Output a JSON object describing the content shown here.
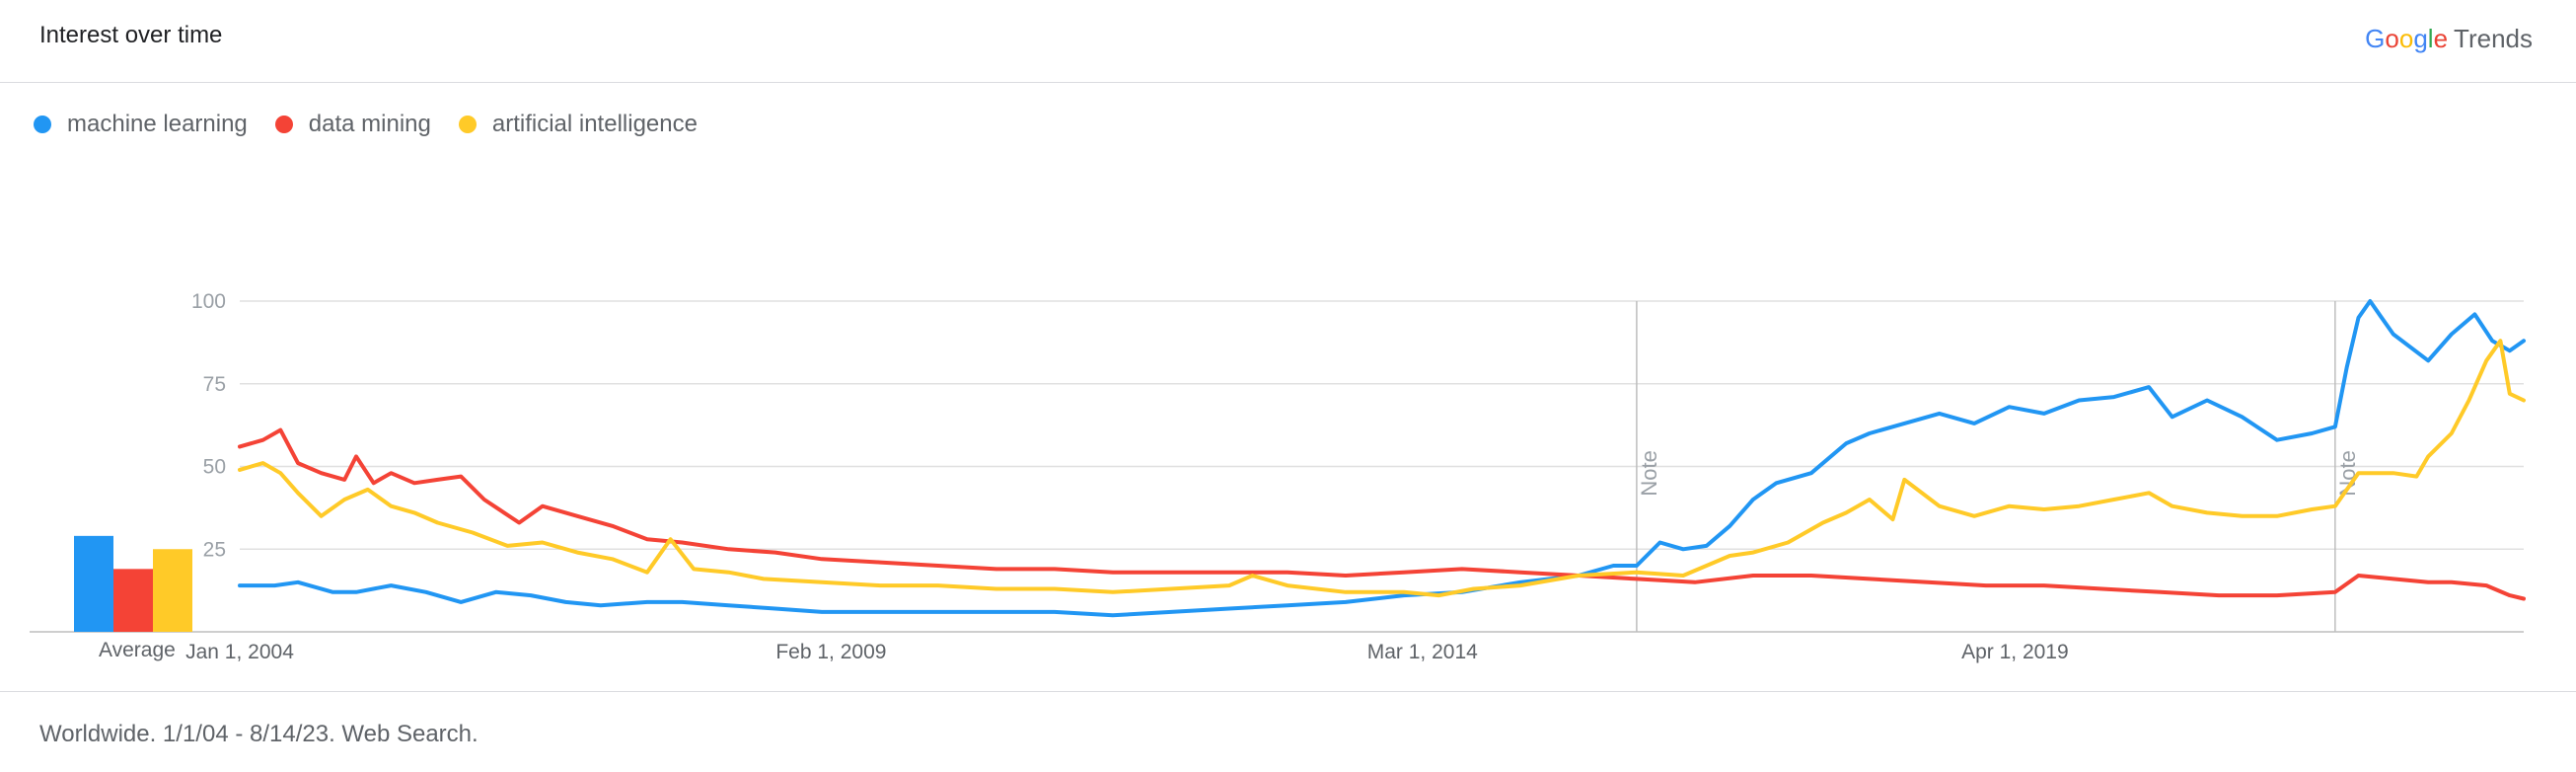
{
  "header": {
    "title": "Interest over time",
    "brand_letters": [
      "G",
      "o",
      "o",
      "g",
      "l",
      "e"
    ],
    "brand_suffix": "Trends"
  },
  "legend": [
    {
      "label": "machine learning",
      "color": "#2196F3"
    },
    {
      "label": "data mining",
      "color": "#F44336"
    },
    {
      "label": "artificial intelligence",
      "color": "#FFCA28"
    }
  ],
  "footer": {
    "text": "Worldwide. 1/1/04 - 8/14/23. Web Search."
  },
  "average_label": "Average",
  "chart_data": {
    "type": "line",
    "title": "Interest over time",
    "xlabel": "",
    "ylabel": "",
    "ylim": [
      0,
      100
    ],
    "x_range": [
      2004.0,
      2023.62
    ],
    "y_ticks": [
      "25",
      "50",
      "75",
      "100"
    ],
    "x_ticks": [
      {
        "label": "Jan 1, 2004",
        "year": 2004.0
      },
      {
        "label": "Feb 1, 2009",
        "year": 2009.08
      },
      {
        "label": "Mar 1, 2014",
        "year": 2014.16
      },
      {
        "label": "Apr 1, 2019",
        "year": 2019.25
      }
    ],
    "notes": [
      {
        "label": "Note",
        "year": 2016.0
      },
      {
        "label": "Note",
        "year": 2022.0
      }
    ],
    "averages": [
      {
        "name": "machine learning",
        "value": 29
      },
      {
        "name": "data mining",
        "value": 19
      },
      {
        "name": "artificial intelligence",
        "value": 25
      }
    ],
    "series": [
      {
        "name": "machine learning",
        "color": "#2196F3",
        "points": [
          [
            2004.0,
            14
          ],
          [
            2004.3,
            14
          ],
          [
            2004.5,
            15
          ],
          [
            2004.8,
            12
          ],
          [
            2005.0,
            12
          ],
          [
            2005.3,
            14
          ],
          [
            2005.6,
            12
          ],
          [
            2005.9,
            9
          ],
          [
            2006.2,
            12
          ],
          [
            2006.5,
            11
          ],
          [
            2006.8,
            9
          ],
          [
            2007.1,
            8
          ],
          [
            2007.5,
            9
          ],
          [
            2007.8,
            9
          ],
          [
            2008.2,
            8
          ],
          [
            2008.6,
            7
          ],
          [
            2009.0,
            6
          ],
          [
            2009.5,
            6
          ],
          [
            2010.0,
            6
          ],
          [
            2010.5,
            6
          ],
          [
            2011.0,
            6
          ],
          [
            2011.5,
            5
          ],
          [
            2012.0,
            6
          ],
          [
            2012.5,
            7
          ],
          [
            2013.0,
            8
          ],
          [
            2013.5,
            9
          ],
          [
            2014.0,
            11
          ],
          [
            2014.5,
            12
          ],
          [
            2015.0,
            15
          ],
          [
            2015.5,
            17
          ],
          [
            2015.8,
            20
          ],
          [
            2016.0,
            20
          ],
          [
            2016.2,
            27
          ],
          [
            2016.4,
            25
          ],
          [
            2016.6,
            26
          ],
          [
            2016.8,
            32
          ],
          [
            2017.0,
            40
          ],
          [
            2017.2,
            45
          ],
          [
            2017.5,
            48
          ],
          [
            2017.8,
            57
          ],
          [
            2018.0,
            60
          ],
          [
            2018.3,
            63
          ],
          [
            2018.6,
            66
          ],
          [
            2018.9,
            63
          ],
          [
            2019.2,
            68
          ],
          [
            2019.5,
            66
          ],
          [
            2019.8,
            70
          ],
          [
            2020.1,
            71
          ],
          [
            2020.4,
            74
          ],
          [
            2020.6,
            65
          ],
          [
            2020.9,
            70
          ],
          [
            2021.2,
            65
          ],
          [
            2021.5,
            58
          ],
          [
            2021.8,
            60
          ],
          [
            2022.0,
            62
          ],
          [
            2022.1,
            80
          ],
          [
            2022.2,
            95
          ],
          [
            2022.3,
            100
          ],
          [
            2022.4,
            95
          ],
          [
            2022.5,
            90
          ],
          [
            2022.8,
            82
          ],
          [
            2023.0,
            90
          ],
          [
            2023.2,
            96
          ],
          [
            2023.35,
            88
          ],
          [
            2023.5,
            85
          ],
          [
            2023.62,
            88
          ]
        ]
      },
      {
        "name": "data mining",
        "color": "#F44336",
        "points": [
          [
            2004.0,
            56
          ],
          [
            2004.2,
            58
          ],
          [
            2004.35,
            61
          ],
          [
            2004.5,
            51
          ],
          [
            2004.7,
            48
          ],
          [
            2004.9,
            46
          ],
          [
            2005.0,
            53
          ],
          [
            2005.15,
            45
          ],
          [
            2005.3,
            48
          ],
          [
            2005.5,
            45
          ],
          [
            2005.7,
            46
          ],
          [
            2005.9,
            47
          ],
          [
            2006.1,
            40
          ],
          [
            2006.4,
            33
          ],
          [
            2006.6,
            38
          ],
          [
            2006.9,
            35
          ],
          [
            2007.2,
            32
          ],
          [
            2007.5,
            28
          ],
          [
            2007.8,
            27
          ],
          [
            2008.2,
            25
          ],
          [
            2008.6,
            24
          ],
          [
            2009.0,
            22
          ],
          [
            2009.5,
            21
          ],
          [
            2010.0,
            20
          ],
          [
            2010.5,
            19
          ],
          [
            2011.0,
            19
          ],
          [
            2011.5,
            18
          ],
          [
            2012.0,
            18
          ],
          [
            2012.5,
            18
          ],
          [
            2013.0,
            18
          ],
          [
            2013.5,
            17
          ],
          [
            2014.0,
            18
          ],
          [
            2014.5,
            19
          ],
          [
            2015.0,
            18
          ],
          [
            2015.5,
            17
          ],
          [
            2016.0,
            16
          ],
          [
            2016.5,
            15
          ],
          [
            2017.0,
            17
          ],
          [
            2017.5,
            17
          ],
          [
            2018.0,
            16
          ],
          [
            2018.5,
            15
          ],
          [
            2019.0,
            14
          ],
          [
            2019.5,
            14
          ],
          [
            2020.0,
            13
          ],
          [
            2020.5,
            12
          ],
          [
            2021.0,
            11
          ],
          [
            2021.5,
            11
          ],
          [
            2022.0,
            12
          ],
          [
            2022.2,
            17
          ],
          [
            2022.5,
            16
          ],
          [
            2022.8,
            15
          ],
          [
            2023.0,
            15
          ],
          [
            2023.3,
            14
          ],
          [
            2023.5,
            11
          ],
          [
            2023.62,
            10
          ]
        ]
      },
      {
        "name": "artificial intelligence",
        "color": "#FFCA28",
        "points": [
          [
            2004.0,
            49
          ],
          [
            2004.2,
            51
          ],
          [
            2004.35,
            48
          ],
          [
            2004.5,
            42
          ],
          [
            2004.7,
            35
          ],
          [
            2004.9,
            40
          ],
          [
            2005.1,
            43
          ],
          [
            2005.3,
            38
          ],
          [
            2005.5,
            36
          ],
          [
            2005.7,
            33
          ],
          [
            2006.0,
            30
          ],
          [
            2006.3,
            26
          ],
          [
            2006.6,
            27
          ],
          [
            2006.9,
            24
          ],
          [
            2007.2,
            22
          ],
          [
            2007.5,
            18
          ],
          [
            2007.7,
            28
          ],
          [
            2007.9,
            19
          ],
          [
            2008.2,
            18
          ],
          [
            2008.5,
            16
          ],
          [
            2009.0,
            15
          ],
          [
            2009.5,
            14
          ],
          [
            2010.0,
            14
          ],
          [
            2010.5,
            13
          ],
          [
            2011.0,
            13
          ],
          [
            2011.5,
            12
          ],
          [
            2012.0,
            13
          ],
          [
            2012.5,
            14
          ],
          [
            2012.7,
            17
          ],
          [
            2013.0,
            14
          ],
          [
            2013.5,
            12
          ],
          [
            2014.0,
            12
          ],
          [
            2014.3,
            11
          ],
          [
            2014.6,
            13
          ],
          [
            2015.0,
            14
          ],
          [
            2015.5,
            17
          ],
          [
            2016.0,
            18
          ],
          [
            2016.4,
            17
          ],
          [
            2016.8,
            23
          ],
          [
            2017.0,
            24
          ],
          [
            2017.3,
            27
          ],
          [
            2017.6,
            33
          ],
          [
            2017.8,
            36
          ],
          [
            2018.0,
            40
          ],
          [
            2018.2,
            34
          ],
          [
            2018.3,
            46
          ],
          [
            2018.6,
            38
          ],
          [
            2018.9,
            35
          ],
          [
            2019.2,
            38
          ],
          [
            2019.5,
            37
          ],
          [
            2019.8,
            38
          ],
          [
            2020.1,
            40
          ],
          [
            2020.4,
            42
          ],
          [
            2020.6,
            38
          ],
          [
            2020.9,
            36
          ],
          [
            2021.2,
            35
          ],
          [
            2021.5,
            35
          ],
          [
            2021.8,
            37
          ],
          [
            2022.0,
            38
          ],
          [
            2022.2,
            48
          ],
          [
            2022.5,
            48
          ],
          [
            2022.7,
            47
          ],
          [
            2022.8,
            53
          ],
          [
            2023.0,
            60
          ],
          [
            2023.15,
            70
          ],
          [
            2023.3,
            82
          ],
          [
            2023.42,
            88
          ],
          [
            2023.5,
            72
          ],
          [
            2023.62,
            70
          ]
        ]
      }
    ]
  }
}
